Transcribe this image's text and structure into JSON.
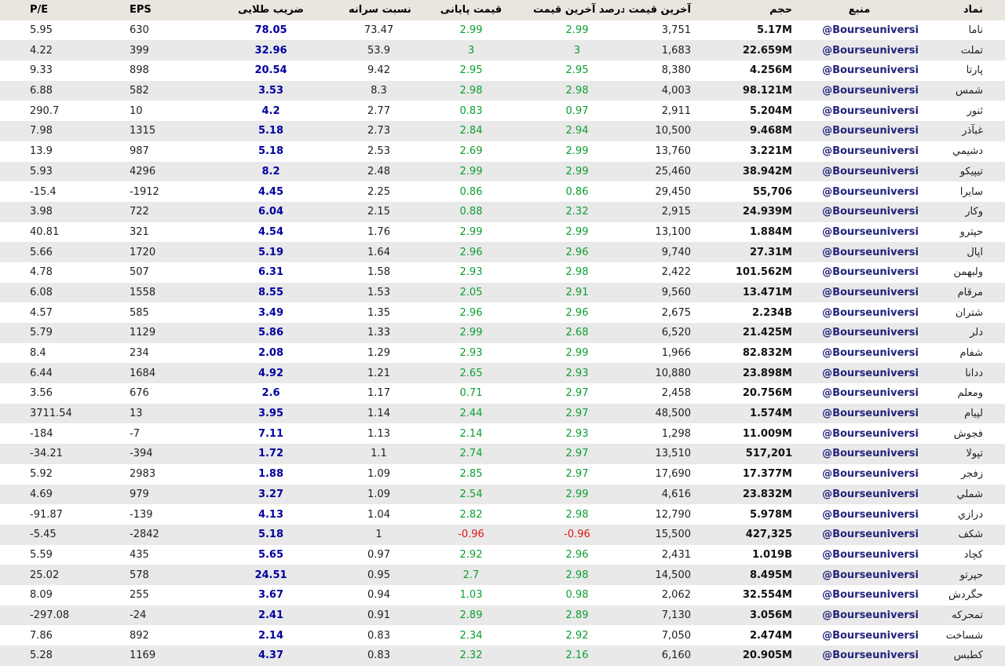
{
  "colors": {
    "positive": "#0b9e30",
    "negative": "#e01515",
    "golden": "#0000a0",
    "source": "#24247e",
    "header_bg": "#e8e6df",
    "stripe_bg": "#e9e9e9"
  },
  "table": {
    "columns": [
      {
        "key": "symbol",
        "label": "نماد",
        "style": "symbol"
      },
      {
        "key": "source",
        "label": "منبع",
        "style": "source"
      },
      {
        "key": "volume",
        "label": "حجم",
        "style": "volume"
      },
      {
        "key": "last_price",
        "label": "آخرین قیمت",
        "style": "plain"
      },
      {
        "key": "last_pct",
        "label": "درصد آخرین قیمت",
        "style": "signed"
      },
      {
        "key": "close",
        "label": "قیمت پایانی",
        "style": "signed"
      },
      {
        "key": "ratio",
        "label": "نسبت سرانه",
        "style": "plain"
      },
      {
        "key": "golden",
        "label": "ضریب طلایی",
        "style": "golden"
      },
      {
        "key": "eps",
        "label": "EPS",
        "style": "plain"
      },
      {
        "key": "pe",
        "label": "P/E",
        "style": "plain"
      }
    ],
    "rows": [
      {
        "symbol": "ناما",
        "source": "@Bourseuniversi",
        "volume": "5.17M",
        "last_price": "3,751",
        "last_pct": "2.99",
        "close": "2.99",
        "ratio": "73.47",
        "golden": "78.05",
        "eps": "630",
        "pe": "5.95"
      },
      {
        "symbol": "تملت",
        "source": "@Bourseuniversi",
        "volume": "22.659M",
        "last_price": "1,683",
        "last_pct": "3",
        "close": "3",
        "ratio": "53.9",
        "golden": "32.96",
        "eps": "399",
        "pe": "4.22"
      },
      {
        "symbol": "پارتا",
        "source": "@Bourseuniversi",
        "volume": "4.256M",
        "last_price": "8,380",
        "last_pct": "2.95",
        "close": "2.95",
        "ratio": "9.42",
        "golden": "20.54",
        "eps": "898",
        "pe": "9.33"
      },
      {
        "symbol": "شمس",
        "source": "@Bourseuniversi",
        "volume": "98.121M",
        "last_price": "4,003",
        "last_pct": "2.98",
        "close": "2.98",
        "ratio": "8.3",
        "golden": "3.53",
        "eps": "582",
        "pe": "6.88"
      },
      {
        "symbol": "ثنور",
        "source": "@Bourseuniversi",
        "volume": "5.204M",
        "last_price": "2,911",
        "last_pct": "0.97",
        "close": "0.83",
        "ratio": "2.77",
        "golden": "4.2",
        "eps": "10",
        "pe": "290.7"
      },
      {
        "symbol": "غبآذر",
        "source": "@Bourseuniversi",
        "volume": "9.468M",
        "last_price": "10,500",
        "last_pct": "2.94",
        "close": "2.84",
        "ratio": "2.73",
        "golden": "5.18",
        "eps": "1315",
        "pe": "7.98"
      },
      {
        "symbol": "دشيمي",
        "source": "@Bourseuniversi",
        "volume": "3.221M",
        "last_price": "13,760",
        "last_pct": "2.99",
        "close": "2.69",
        "ratio": "2.53",
        "golden": "5.18",
        "eps": "987",
        "pe": "13.9"
      },
      {
        "symbol": "تيپيكو",
        "source": "@Bourseuniversi",
        "volume": "38.942M",
        "last_price": "25,460",
        "last_pct": "2.99",
        "close": "2.99",
        "ratio": "2.48",
        "golden": "8.2",
        "eps": "4296",
        "pe": "5.93"
      },
      {
        "symbol": "سايرا",
        "source": "@Bourseuniversi",
        "volume": "55,706",
        "last_price": "29,450",
        "last_pct": "0.86",
        "close": "0.86",
        "ratio": "2.25",
        "golden": "4.45",
        "eps": "-1912",
        "pe": "-15.4"
      },
      {
        "symbol": "وكار",
        "source": "@Bourseuniversi",
        "volume": "24.939M",
        "last_price": "2,915",
        "last_pct": "2.32",
        "close": "0.88",
        "ratio": "2.15",
        "golden": "6.04",
        "eps": "722",
        "pe": "3.98"
      },
      {
        "symbol": "حپترو",
        "source": "@Bourseuniversi",
        "volume": "1.884M",
        "last_price": "13,100",
        "last_pct": "2.99",
        "close": "2.99",
        "ratio": "1.76",
        "golden": "4.54",
        "eps": "321",
        "pe": "40.81"
      },
      {
        "symbol": "اپال",
        "source": "@Bourseuniversi",
        "volume": "27.31M",
        "last_price": "9,740",
        "last_pct": "2.96",
        "close": "2.96",
        "ratio": "1.64",
        "golden": "5.19",
        "eps": "1720",
        "pe": "5.66"
      },
      {
        "symbol": "ولبهمن",
        "source": "@Bourseuniversi",
        "volume": "101.562M",
        "last_price": "2,422",
        "last_pct": "2.98",
        "close": "2.93",
        "ratio": "1.58",
        "golden": "6.31",
        "eps": "507",
        "pe": "4.78"
      },
      {
        "symbol": "مرقام",
        "source": "@Bourseuniversi",
        "volume": "13.471M",
        "last_price": "9,560",
        "last_pct": "2.91",
        "close": "2.05",
        "ratio": "1.53",
        "golden": "8.55",
        "eps": "1558",
        "pe": "6.08"
      },
      {
        "symbol": "شتران",
        "source": "@Bourseuniversi",
        "volume": "2.234B",
        "last_price": "2,675",
        "last_pct": "2.96",
        "close": "2.96",
        "ratio": "1.35",
        "golden": "3.49",
        "eps": "585",
        "pe": "4.57"
      },
      {
        "symbol": "دلر",
        "source": "@Bourseuniversi",
        "volume": "21.425M",
        "last_price": "6,520",
        "last_pct": "2.68",
        "close": "2.99",
        "ratio": "1.33",
        "golden": "5.86",
        "eps": "1129",
        "pe": "5.79"
      },
      {
        "symbol": "شفام",
        "source": "@Bourseuniversi",
        "volume": "82.832M",
        "last_price": "1,966",
        "last_pct": "2.99",
        "close": "2.93",
        "ratio": "1.29",
        "golden": "2.08",
        "eps": "234",
        "pe": "8.4"
      },
      {
        "symbol": "ددانا",
        "source": "@Bourseuniversi",
        "volume": "23.898M",
        "last_price": "10,880",
        "last_pct": "2.93",
        "close": "2.65",
        "ratio": "1.21",
        "golden": "4.92",
        "eps": "1684",
        "pe": "6.44"
      },
      {
        "symbol": "ومعلم",
        "source": "@Bourseuniversi",
        "volume": "20.756M",
        "last_price": "2,458",
        "last_pct": "2.97",
        "close": "0.71",
        "ratio": "1.17",
        "golden": "2.6",
        "eps": "676",
        "pe": "3.56"
      },
      {
        "symbol": "لپيام",
        "source": "@Bourseuniversi",
        "volume": "1.574M",
        "last_price": "48,500",
        "last_pct": "2.97",
        "close": "2.44",
        "ratio": "1.14",
        "golden": "3.95",
        "eps": "13",
        "pe": "3711.54"
      },
      {
        "symbol": "فجوش",
        "source": "@Bourseuniversi",
        "volume": "11.009M",
        "last_price": "1,298",
        "last_pct": "2.93",
        "close": "2.14",
        "ratio": "1.13",
        "golden": "7.11",
        "eps": "-7",
        "pe": "-184"
      },
      {
        "symbol": "تپولا",
        "source": "@Bourseuniversi",
        "volume": "517,201",
        "last_price": "13,510",
        "last_pct": "2.97",
        "close": "2.74",
        "ratio": "1.1",
        "golden": "1.72",
        "eps": "-394",
        "pe": "-34.21"
      },
      {
        "symbol": "زفجر",
        "source": "@Bourseuniversi",
        "volume": "17.377M",
        "last_price": "17,690",
        "last_pct": "2.97",
        "close": "2.85",
        "ratio": "1.09",
        "golden": "1.88",
        "eps": "2983",
        "pe": "5.92"
      },
      {
        "symbol": "شملي",
        "source": "@Bourseuniversi",
        "volume": "23.832M",
        "last_price": "4,616",
        "last_pct": "2.99",
        "close": "2.54",
        "ratio": "1.09",
        "golden": "3.27",
        "eps": "979",
        "pe": "4.69"
      },
      {
        "symbol": "درازي",
        "source": "@Bourseuniversi",
        "volume": "5.978M",
        "last_price": "12,790",
        "last_pct": "2.98",
        "close": "2.82",
        "ratio": "1.04",
        "golden": "4.13",
        "eps": "-139",
        "pe": "-91.87"
      },
      {
        "symbol": "شكف",
        "source": "@Bourseuniversi",
        "volume": "427,325",
        "last_price": "15,500",
        "last_pct": "-0.96",
        "close": "-0.96",
        "ratio": "1",
        "golden": "5.18",
        "eps": "-2842",
        "pe": "-5.45"
      },
      {
        "symbol": "كچاد",
        "source": "@Bourseuniversi",
        "volume": "1.019B",
        "last_price": "2,431",
        "last_pct": "2.96",
        "close": "2.92",
        "ratio": "0.97",
        "golden": "5.65",
        "eps": "435",
        "pe": "5.59"
      },
      {
        "symbol": "حپرتو",
        "source": "@Bourseuniversi",
        "volume": "8.495M",
        "last_price": "14,500",
        "last_pct": "2.98",
        "close": "2.7",
        "ratio": "0.95",
        "golden": "24.51",
        "eps": "578",
        "pe": "25.02"
      },
      {
        "symbol": "حگردش",
        "source": "@Bourseuniversi",
        "volume": "32.554M",
        "last_price": "2,062",
        "last_pct": "0.98",
        "close": "1.03",
        "ratio": "0.94",
        "golden": "3.67",
        "eps": "255",
        "pe": "8.09"
      },
      {
        "symbol": "تمحركه",
        "source": "@Bourseuniversi",
        "volume": "3.056M",
        "last_price": "7,130",
        "last_pct": "2.89",
        "close": "2.89",
        "ratio": "0.91",
        "golden": "2.41",
        "eps": "-24",
        "pe": "-297.08"
      },
      {
        "symbol": "شساخت",
        "source": "@Bourseuniversi",
        "volume": "2.474M",
        "last_price": "7,050",
        "last_pct": "2.92",
        "close": "2.34",
        "ratio": "0.83",
        "golden": "2.14",
        "eps": "892",
        "pe": "7.86"
      },
      {
        "symbol": "كطبس",
        "source": "@Bourseuniversi",
        "volume": "20.905M",
        "last_price": "6,160",
        "last_pct": "2.16",
        "close": "2.32",
        "ratio": "0.83",
        "golden": "4.37",
        "eps": "1169",
        "pe": "5.28"
      }
    ]
  }
}
